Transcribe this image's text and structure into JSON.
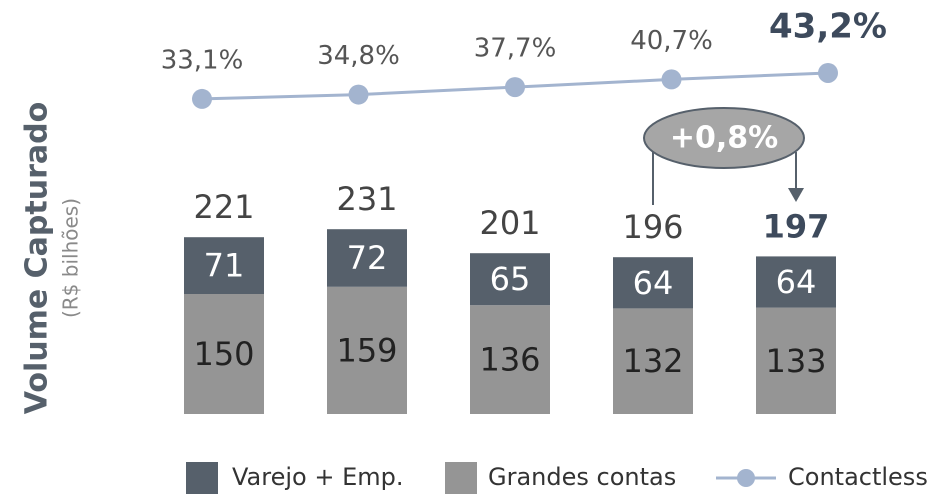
{
  "chart_data": {
    "type": "stacked_bar_line",
    "y_axis_label": "Volume Capturado",
    "y_axis_sublabel": "(R$ bilhões)",
    "series": [
      {
        "name": "Grandes contas",
        "color": "#959595",
        "values": [
          150,
          159,
          136,
          132,
          133
        ]
      },
      {
        "name": "Varejo + Emp.",
        "color": "#56606b",
        "values": [
          71,
          72,
          65,
          64,
          64
        ]
      }
    ],
    "totals": [
      221,
      231,
      201,
      196,
      197
    ],
    "line": {
      "name": "Contactless",
      "color": "#a3b4cf",
      "values": [
        33.1,
        34.8,
        37.7,
        40.7,
        43.2
      ],
      "value_labels": [
        "33,1%",
        "34,8%",
        "37,7%",
        "40,7%",
        "43,2%"
      ]
    },
    "annotation": "+0,8%",
    "legend": "bottom"
  }
}
